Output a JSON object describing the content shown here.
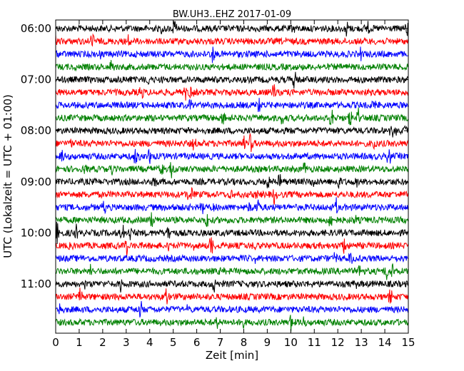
{
  "chart_data": {
    "type": "line",
    "title": "BW.UH3..EHZ 2017-01-09",
    "xlabel": "Zeit  [min]",
    "ylabel": "UTC (Lokalzeit = UTC + 01:00)",
    "xlim": [
      0,
      15
    ],
    "x_ticks": [
      0,
      1,
      2,
      3,
      4,
      5,
      6,
      7,
      8,
      9,
      10,
      11,
      12,
      13,
      14,
      15
    ],
    "y_tick_labels": [
      "06:00",
      "07:00",
      "08:00",
      "09:00",
      "10:00",
      "11:00"
    ],
    "y_tick_rows": [
      0,
      4,
      8,
      12,
      16,
      20
    ],
    "rows": 24,
    "row_interval_minutes": 15,
    "color_cycle": [
      "#000000",
      "#ff0000",
      "#0000ff",
      "#008000"
    ],
    "grid": false,
    "legend": "none"
  }
}
